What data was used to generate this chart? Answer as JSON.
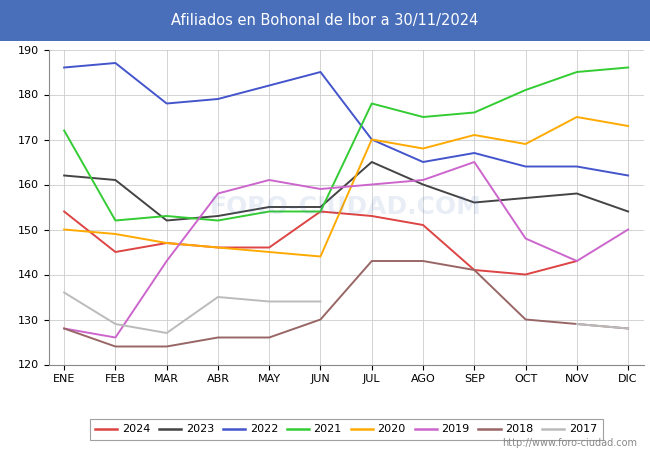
{
  "title": "Afiliados en Bohonal de Ibor a 30/11/2024",
  "title_bg_color": "#4a6fba",
  "title_text_color": "white",
  "ylim": [
    120,
    190
  ],
  "yticks": [
    120,
    130,
    140,
    150,
    160,
    170,
    180,
    190
  ],
  "months": [
    "ENE",
    "FEB",
    "MAR",
    "ABR",
    "MAY",
    "JUN",
    "JUL",
    "AGO",
    "SEP",
    "OCT",
    "NOV",
    "DIC"
  ],
  "watermark": "FORO-CIUDAD.COM",
  "footer": "http://www.foro-ciudad.com",
  "series": {
    "2024": {
      "color": "#dd4444",
      "data": [
        154,
        145,
        147,
        146,
        146,
        154,
        153,
        151,
        141,
        140,
        143,
        null
      ]
    },
    "2023": {
      "color": "#444444",
      "data": [
        162,
        161,
        152,
        153,
        155,
        155,
        165,
        160,
        156,
        157,
        158,
        154
      ]
    },
    "2022": {
      "color": "#4455cc",
      "data": [
        186,
        187,
        178,
        179,
        182,
        185,
        170,
        165,
        167,
        164,
        164,
        162
      ]
    },
    "2021": {
      "color": "#33cc33",
      "data": [
        172,
        152,
        153,
        152,
        154,
        154,
        178,
        175,
        176,
        181,
        185,
        186
      ]
    },
    "2020": {
      "color": "#ffaa00",
      "data": [
        150,
        149,
        147,
        146,
        145,
        144,
        170,
        168,
        171,
        169,
        175,
        173
      ]
    },
    "2019": {
      "color": "#cc66cc",
      "data": [
        128,
        126,
        143,
        158,
        161,
        159,
        160,
        161,
        165,
        148,
        143,
        150
      ]
    },
    "2018": {
      "color": "#996666",
      "data": [
        128,
        124,
        124,
        126,
        126,
        130,
        143,
        143,
        141,
        130,
        129,
        128
      ]
    },
    "2017": {
      "color": "#bbbbbb",
      "data": [
        136,
        129,
        127,
        135,
        134,
        134,
        null,
        null,
        null,
        null,
        129,
        128
      ]
    }
  },
  "legend_order": [
    "2024",
    "2023",
    "2022",
    "2021",
    "2020",
    "2019",
    "2018",
    "2017"
  ]
}
